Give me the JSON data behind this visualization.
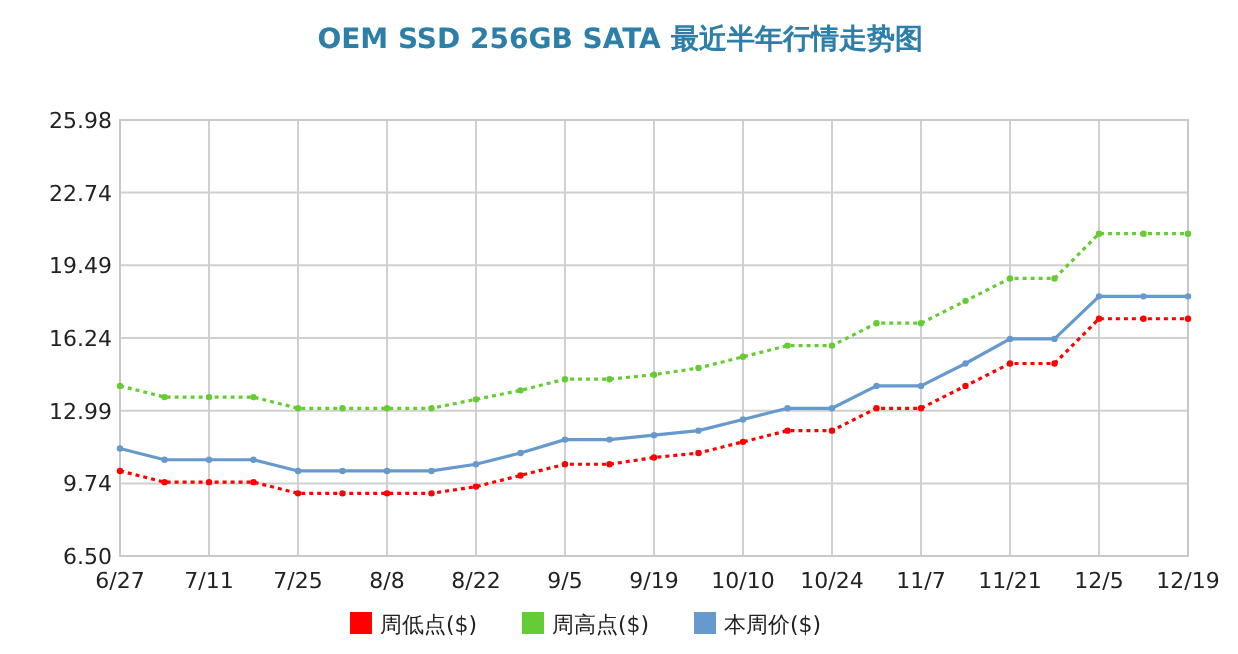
{
  "chart_data": {
    "type": "line",
    "title": "OEM SSD 256GB SATA 最近半年行情走势图",
    "categories": [
      "6/27",
      null,
      "7/11",
      null,
      "7/25",
      null,
      "8/8",
      null,
      "8/22",
      null,
      "9/5",
      null,
      "9/19",
      null,
      "10/10",
      null,
      "10/24",
      null,
      "11/7",
      null,
      "11/21",
      null,
      "12/5",
      null,
      "12/19"
    ],
    "ylim": [
      6.5,
      25.98
    ],
    "yticks": [
      {
        "value": 6.5,
        "label": "6.50"
      },
      9.74,
      12.99,
      16.24,
      19.49,
      22.74,
      25.98
    ],
    "grid": true,
    "legend": "bottom",
    "marker": "circle",
    "series": [
      {
        "name": "周低点($)",
        "color": "#ff0000",
        "line_style": "dotted",
        "values": [
          10.3,
          9.8,
          9.8,
          9.8,
          9.3,
          9.3,
          9.3,
          9.3,
          9.6,
          10.1,
          10.6,
          10.6,
          10.9,
          11.1,
          11.6,
          12.1,
          12.1,
          13.1,
          13.1,
          14.1,
          15.1,
          15.1,
          17.1,
          17.1,
          17.1
        ]
      },
      {
        "name": "周高点($)",
        "color": "#66cc33",
        "line_style": "dotted",
        "values": [
          14.1,
          13.6,
          13.6,
          13.6,
          13.1,
          13.1,
          13.1,
          13.1,
          13.5,
          13.9,
          14.4,
          14.4,
          14.6,
          14.9,
          15.4,
          15.9,
          15.9,
          16.9,
          16.9,
          17.9,
          18.9,
          18.9,
          20.9,
          20.9,
          20.9
        ]
      },
      {
        "name": "本周价($)",
        "color": "#6699cc",
        "line_style": "solid",
        "values": [
          11.3,
          10.8,
          10.8,
          10.8,
          10.3,
          10.3,
          10.3,
          10.3,
          10.6,
          11.1,
          11.7,
          11.7,
          11.9,
          12.1,
          12.6,
          13.1,
          13.1,
          14.1,
          14.1,
          15.1,
          16.2,
          16.2,
          18.1,
          18.1,
          18.1
        ]
      }
    ]
  }
}
